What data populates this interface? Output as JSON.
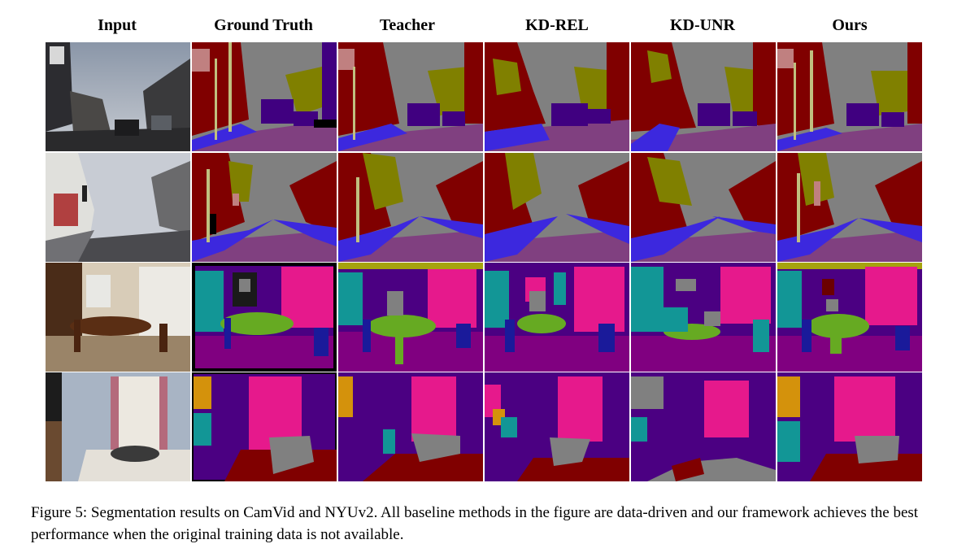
{
  "figure": {
    "columns": [
      "Input",
      "Ground Truth",
      "Teacher",
      "KD-REL",
      "KD-UNR",
      "Ours"
    ],
    "caption": "Figure 5: Segmentation results on CamVid and NYUv2. All baseline methods in the figure are data-driven and our framework achieves the best performance when the original training data is not available.",
    "rows": [
      "camvid-1",
      "camvid-2",
      "nyuv2-1",
      "nyuv2-2"
    ]
  },
  "palette": {
    "sky": "#808080",
    "building": "#800000",
    "tree": "#808000",
    "road": "#804080",
    "sidewalk": "#3c28de",
    "car": "#400080",
    "pole": "#c0c080",
    "sign": "#c08080",
    "pedestrian": "#404000",
    "wall": "#4b0082",
    "floor": "#800080",
    "window": "#e6198c",
    "table": "#66aa22",
    "cabinet": "#129696",
    "chair": "#1a1a9a",
    "ceiling": "#a6a30e",
    "bed": "#8b0000",
    "picture": "#d4920c",
    "person": "#6b0000",
    "void": "#000000"
  }
}
